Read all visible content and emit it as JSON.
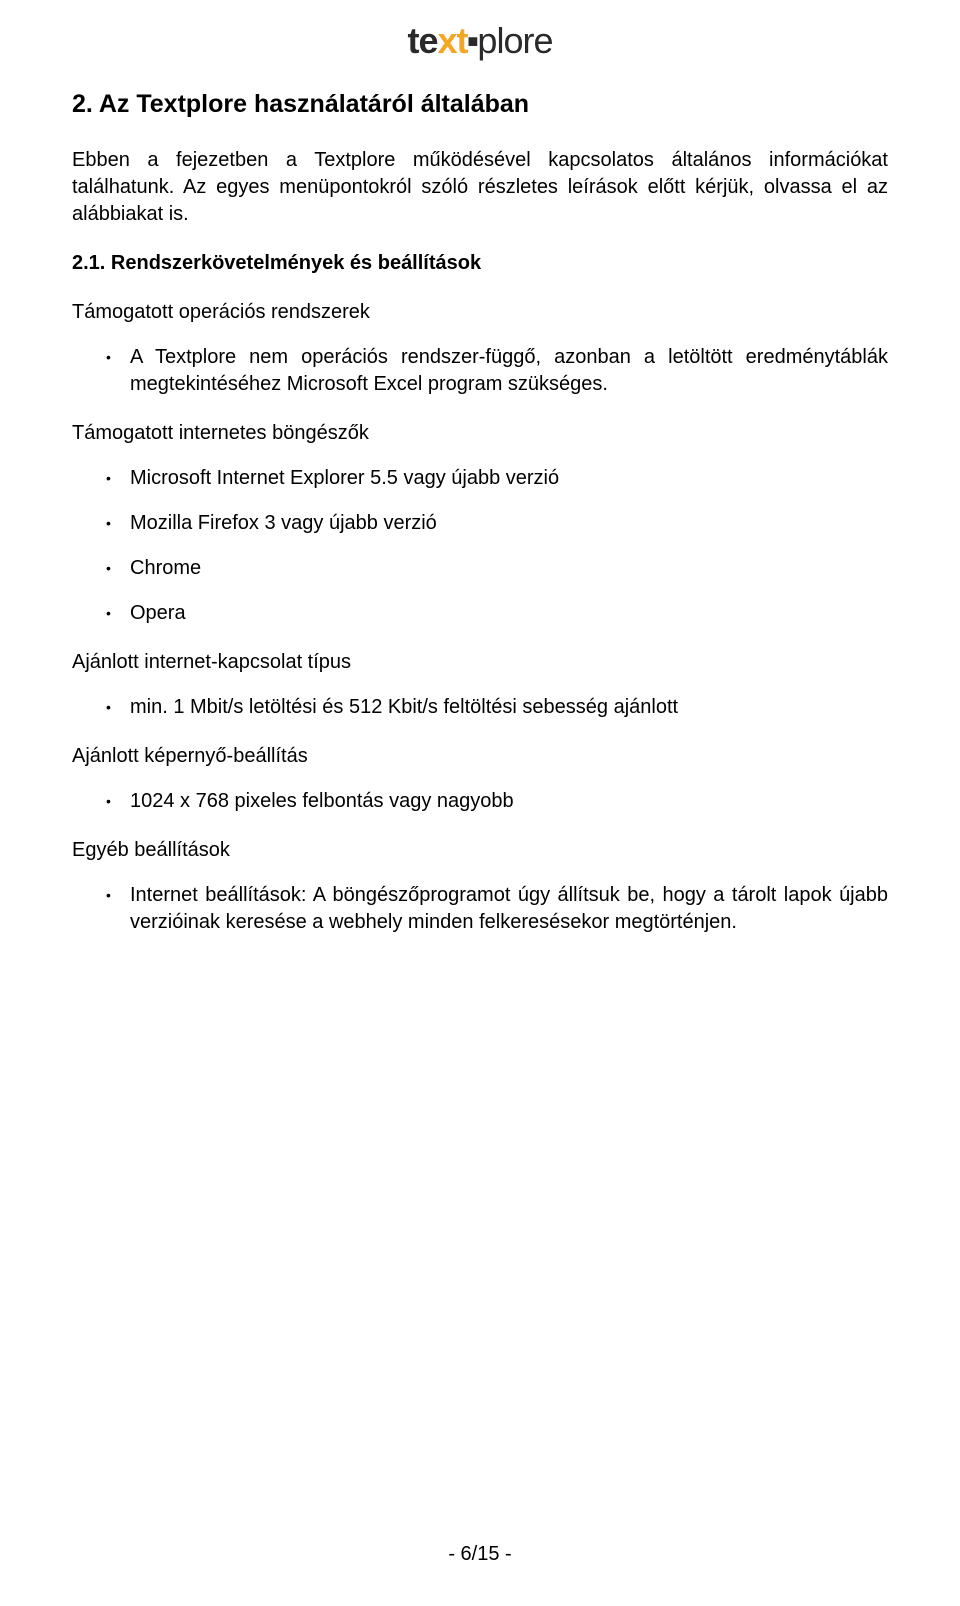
{
  "logo": {
    "seg1": "te",
    "seg2": "xt",
    "seg3": "plore"
  },
  "section": {
    "title": "2. Az Textplore használatáról általában",
    "intro": "Ebben a fejezetben a Textplore működésével kapcsolatos általános információkat találhatunk. Az egyes menüpontokról szóló részletes leírások előtt kérjük, olvassa el az alábbiakat is."
  },
  "subsection": {
    "title": "2.1. Rendszerkövetelmények és beállítások"
  },
  "groups": {
    "os": {
      "label": "Támogatott operációs rendszerek",
      "items": [
        "A Textplore nem operációs rendszer-függő, azonban a letöltött eredménytáblák megtekintéséhez Microsoft Excel program szükséges."
      ]
    },
    "browsers": {
      "label": "Támogatott internetes böngészők",
      "items": [
        "Microsoft Internet Explorer 5.5 vagy újabb verzió",
        "Mozilla Firefox 3 vagy újabb verzió",
        "Chrome",
        "Opera"
      ]
    },
    "connection": {
      "label": "Ajánlott internet-kapcsolat típus",
      "items": [
        "min. 1 Mbit/s letöltési és 512 Kbit/s feltöltési sebesség ajánlott"
      ]
    },
    "display": {
      "label": "Ajánlott képernyő-beállítás",
      "items": [
        "1024 x 768 pixeles felbontás vagy nagyobb"
      ]
    },
    "other": {
      "label": "Egyéb beállítások",
      "items": [
        "Internet beállítások: A böngészőprogramot úgy állítsuk be, hogy a tárolt lapok újabb verzióinak keresése a webhely minden felkeresésekor megtörténjen."
      ]
    }
  },
  "footer": {
    "page": "- 6/15 -"
  }
}
